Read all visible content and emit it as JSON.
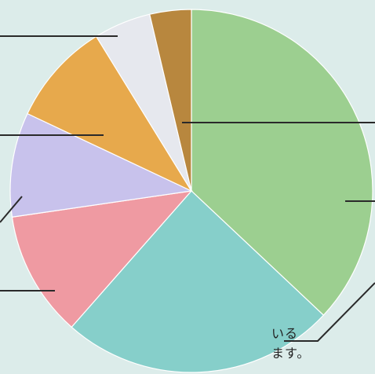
{
  "chart_data": {
    "type": "pie",
    "title": "",
    "start_angle_deg": 0,
    "direction": "clockwise",
    "slices": [
      {
        "value": 37.0,
        "color": "#9ccf90"
      },
      {
        "value": 24.5,
        "color": "#86cfca"
      },
      {
        "value": 11.2,
        "color": "#ef9aa2"
      },
      {
        "value": 9.3,
        "color": "#c8c2ec"
      },
      {
        "value": 9.2,
        "color": "#e7a94c"
      },
      {
        "value": 5.1,
        "color": "#e6e8ee"
      },
      {
        "value": 3.7,
        "color": "#b8873e"
      }
    ]
  },
  "captions": {
    "line1": "いる",
    "line2": "ます。"
  },
  "colors": {
    "background": "#dcecea",
    "leader": "#2a2a2a"
  }
}
